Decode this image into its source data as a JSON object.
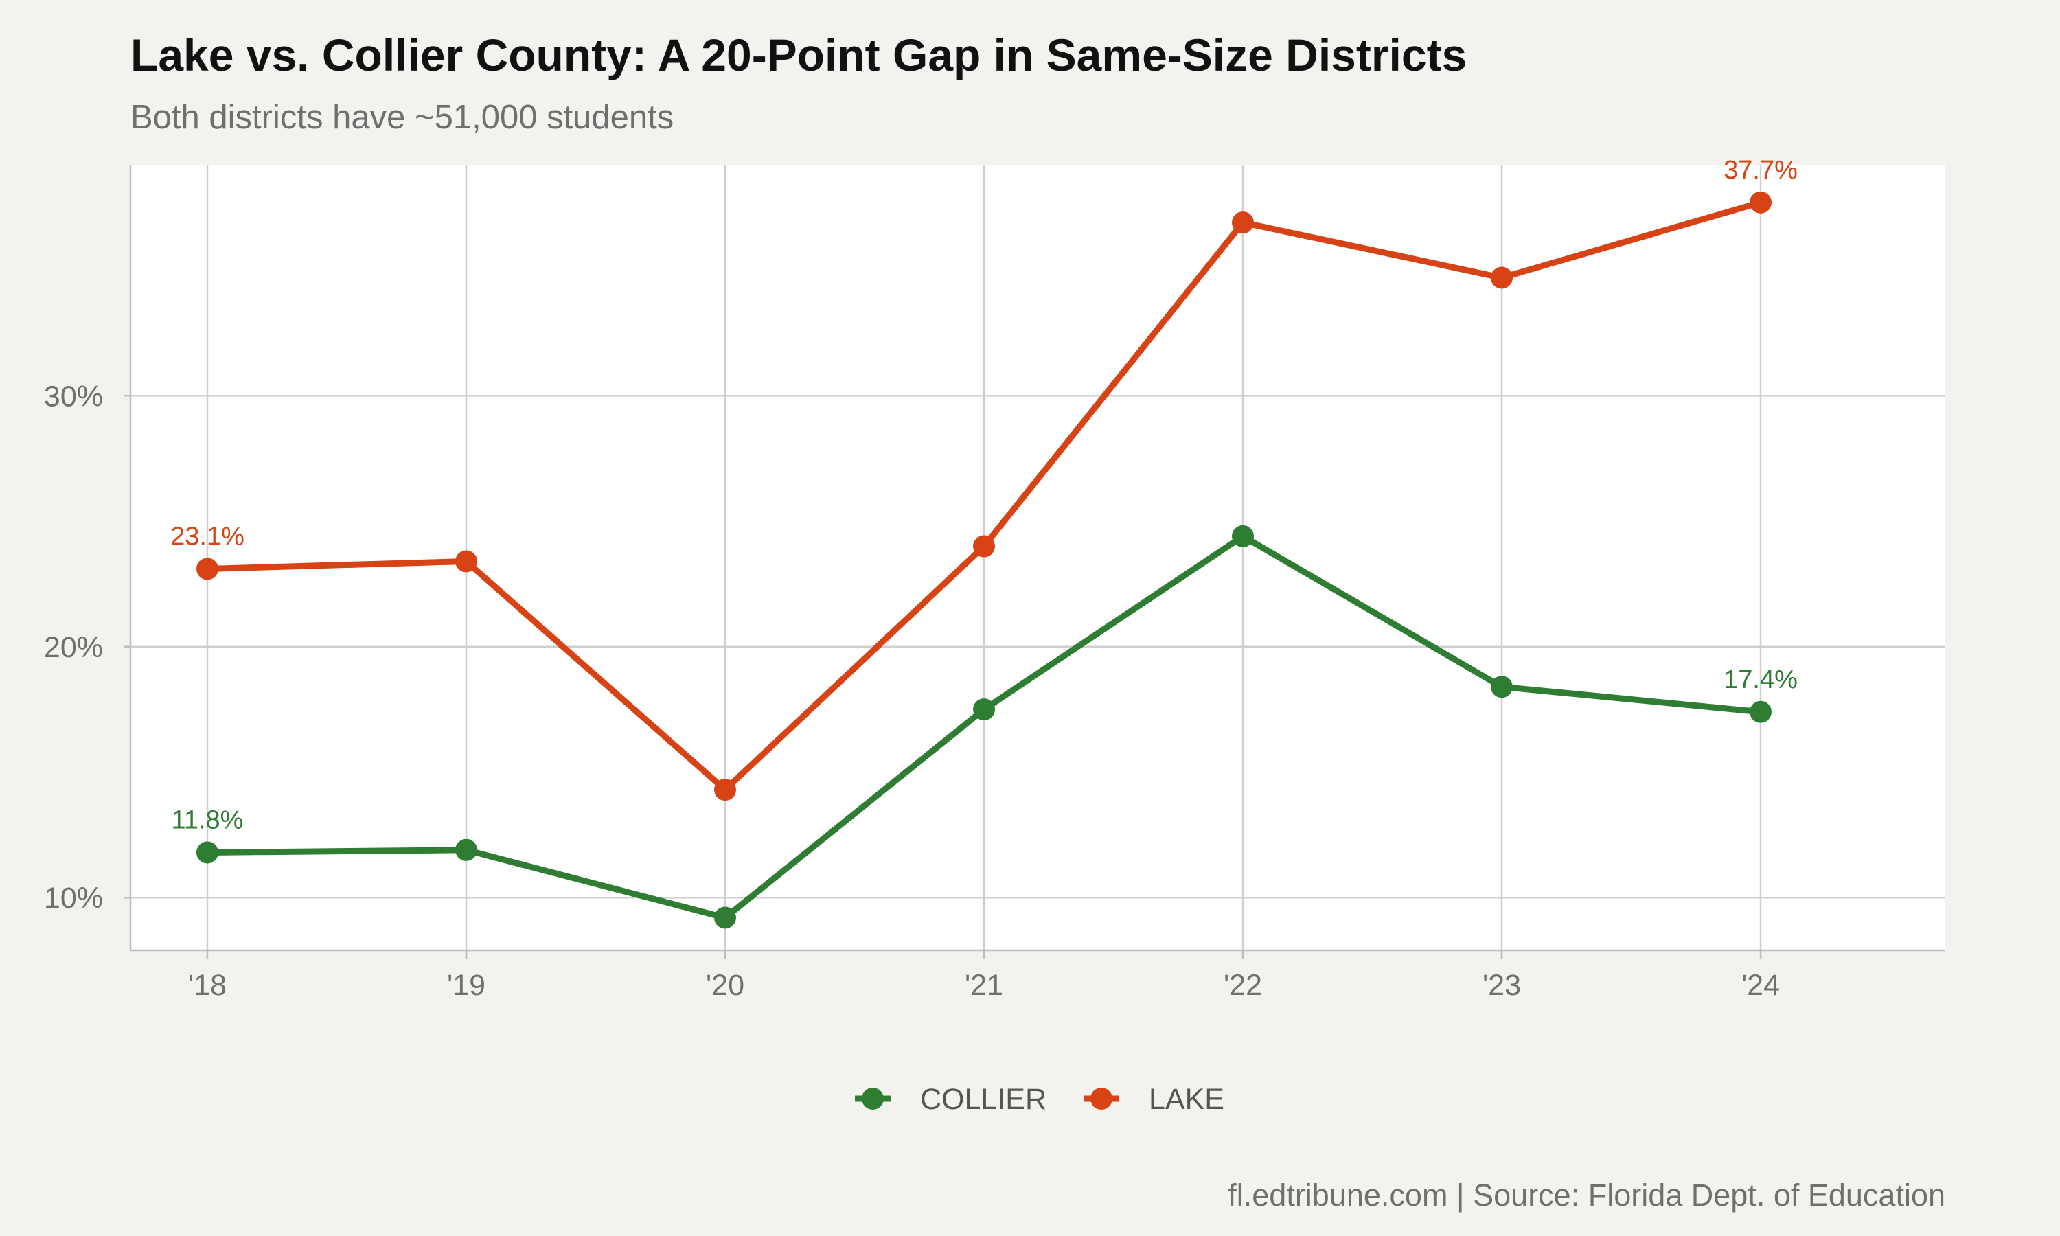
{
  "title": "Lake vs. Collier County: A 20-Point Gap in Same-Size Districts",
  "subtitle": "Both districts have ~51,000 students",
  "caption": "fl.edtribune.com | Source: Florida Dept. of Education",
  "chart_data": {
    "type": "line",
    "x": [
      "'18",
      "'19",
      "'20",
      "'21",
      "'22",
      "'23",
      "'24"
    ],
    "series": [
      {
        "name": "COLLIER",
        "color": "#2e7d32",
        "values": [
          11.8,
          11.9,
          9.2,
          17.5,
          24.4,
          18.4,
          17.4
        ],
        "labels": [
          [
            "0",
            "11.8%"
          ],
          [
            "6",
            "17.4%"
          ]
        ]
      },
      {
        "name": "LAKE",
        "color": "#d84315",
        "values": [
          23.1,
          23.4,
          14.3,
          24.0,
          36.9,
          34.7,
          37.7
        ],
        "labels": [
          [
            "0",
            "23.1%"
          ],
          [
            "6",
            "37.7%"
          ]
        ]
      }
    ],
    "yticks": [
      [
        10,
        "10%"
      ],
      [
        20,
        "20%"
      ],
      [
        30,
        "30%"
      ]
    ],
    "ylim": [
      7.9,
      39.2
    ],
    "grid": true,
    "legend": "bottom",
    "xlabel": "",
    "ylabel": ""
  }
}
